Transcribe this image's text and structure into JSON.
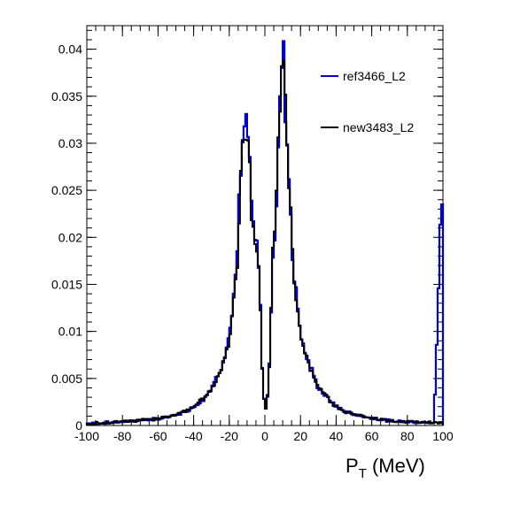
{
  "chart_data": {
    "type": "histogram",
    "xlabel": "P",
    "xlabel_subscript": "T",
    "xlabel_unit": "(MeV)",
    "xlim": [
      -100,
      100
    ],
    "ylim": [
      0,
      0.0425
    ],
    "x_ticks": [
      -100,
      -80,
      -60,
      -40,
      -20,
      0,
      20,
      40,
      60,
      80,
      100
    ],
    "y_ticks": [
      0,
      0.005,
      0.01,
      0.015,
      0.02,
      0.025,
      0.03,
      0.035,
      0.04
    ],
    "y_tick_labels": [
      "0",
      "0.005",
      "0.01",
      "0.015",
      "0.02",
      "0.025",
      "0.03",
      "0.035",
      "0.04"
    ],
    "grid": false,
    "legend_placement": "top-right",
    "bin_edges_range": [
      -100,
      100
    ],
    "series": [
      {
        "name": "ref3466_L2",
        "color": "#0000cc",
        "points": [
          [
            -100,
            0.0002
          ],
          [
            -80,
            0.0004
          ],
          [
            -60,
            0.0007
          ],
          [
            -50,
            0.0011
          ],
          [
            -45,
            0.0015
          ],
          [
            -40,
            0.002
          ],
          [
            -35,
            0.0027
          ],
          [
            -30,
            0.004
          ],
          [
            -25,
            0.006
          ],
          [
            -22,
            0.008
          ],
          [
            -20,
            0.0095
          ],
          [
            -18,
            0.013
          ],
          [
            -16,
            0.016
          ],
          [
            -15,
            0.021
          ],
          [
            -14,
            0.026
          ],
          [
            -13,
            0.027
          ],
          [
            -12,
            0.031
          ],
          [
            -11,
            0.032
          ],
          [
            -10,
            0.033
          ],
          [
            -9,
            0.029
          ],
          [
            -8,
            0.025
          ],
          [
            -7,
            0.022
          ],
          [
            -6,
            0.02
          ],
          [
            -5,
            0.0195
          ],
          [
            -4,
            0.018
          ],
          [
            -3,
            0.0175
          ],
          [
            -2,
            0.008
          ],
          [
            -1,
            0.004
          ],
          [
            0,
            0.0017
          ],
          [
            1,
            0.002
          ],
          [
            2,
            0.0045
          ],
          [
            3,
            0.008
          ],
          [
            4,
            0.0175
          ],
          [
            5,
            0.0195
          ],
          [
            6,
            0.021
          ],
          [
            7,
            0.0265
          ],
          [
            8,
            0.032
          ],
          [
            9,
            0.0355
          ],
          [
            10,
            0.042
          ],
          [
            11,
            0.036
          ],
          [
            12,
            0.032
          ],
          [
            13,
            0.028
          ],
          [
            14,
            0.025
          ],
          [
            15,
            0.021
          ],
          [
            16,
            0.016
          ],
          [
            18,
            0.0135
          ],
          [
            20,
            0.01
          ],
          [
            22,
            0.008
          ],
          [
            25,
            0.0065
          ],
          [
            30,
            0.004
          ],
          [
            35,
            0.003
          ],
          [
            40,
            0.002
          ],
          [
            45,
            0.0015
          ],
          [
            50,
            0.0012
          ],
          [
            60,
            0.0008
          ],
          [
            70,
            0.0005
          ],
          [
            80,
            0.0004
          ],
          [
            90,
            0.0003
          ],
          [
            95,
            0.0003
          ],
          [
            99,
            0.0235
          ]
        ]
      },
      {
        "name": "new3483_L2",
        "color": "#000000",
        "points": [
          [
            -100,
            0.0002
          ],
          [
            -80,
            0.0004
          ],
          [
            -60,
            0.0007
          ],
          [
            -50,
            0.0011
          ],
          [
            -45,
            0.0015
          ],
          [
            -40,
            0.002
          ],
          [
            -35,
            0.0027
          ],
          [
            -30,
            0.004
          ],
          [
            -25,
            0.0058
          ],
          [
            -22,
            0.0078
          ],
          [
            -20,
            0.0093
          ],
          [
            -18,
            0.0125
          ],
          [
            -16,
            0.0155
          ],
          [
            -15,
            0.02
          ],
          [
            -14,
            0.0255
          ],
          [
            -13,
            0.027
          ],
          [
            -12,
            0.0305
          ],
          [
            -11,
            0.0315
          ],
          [
            -10,
            0.0325
          ],
          [
            -9,
            0.0285
          ],
          [
            -8,
            0.0245
          ],
          [
            -7,
            0.021
          ],
          [
            -6,
            0.02
          ],
          [
            -5,
            0.0195
          ],
          [
            -4,
            0.018
          ],
          [
            -3,
            0.017
          ],
          [
            -2,
            0.0075
          ],
          [
            -1,
            0.004
          ],
          [
            0,
            0.0017
          ],
          [
            1,
            0.002
          ],
          [
            2,
            0.0045
          ],
          [
            3,
            0.008
          ],
          [
            4,
            0.017
          ],
          [
            5,
            0.0195
          ],
          [
            6,
            0.0215
          ],
          [
            7,
            0.027
          ],
          [
            8,
            0.0325
          ],
          [
            9,
            0.036
          ],
          [
            10,
            0.0425
          ],
          [
            11,
            0.0355
          ],
          [
            12,
            0.0315
          ],
          [
            13,
            0.0275
          ],
          [
            14,
            0.0245
          ],
          [
            15,
            0.0205
          ],
          [
            16,
            0.0158
          ],
          [
            18,
            0.0132
          ],
          [
            20,
            0.0098
          ],
          [
            22,
            0.0078
          ],
          [
            25,
            0.0063
          ],
          [
            30,
            0.004
          ],
          [
            35,
            0.003
          ],
          [
            40,
            0.002
          ],
          [
            45,
            0.0015
          ],
          [
            50,
            0.0012
          ],
          [
            60,
            0.0008
          ],
          [
            70,
            0.0005
          ],
          [
            80,
            0.0004
          ],
          [
            90,
            0.0003
          ],
          [
            95,
            0.0003
          ],
          [
            99,
            0.0003
          ]
        ]
      }
    ]
  }
}
